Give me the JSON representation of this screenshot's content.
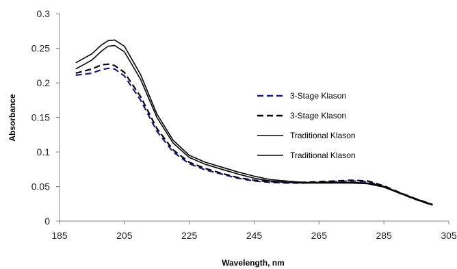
{
  "chart_data": {
    "type": "line",
    "title": "",
    "xlabel": "Wavelength, nm",
    "ylabel": "Absorbance",
    "xlim": [
      185,
      305
    ],
    "ylim": [
      0,
      0.3
    ],
    "xticks": [
      185,
      205,
      225,
      245,
      265,
      285,
      305
    ],
    "yticks": [
      0,
      0.05,
      0.1,
      0.15,
      0.2,
      0.25,
      0.3
    ],
    "ytick_labels": [
      "0",
      "0.05",
      "0.1",
      "0.15",
      "0.2",
      "0.25",
      "0.3"
    ],
    "grid": false,
    "legend_position": "right-center",
    "series": [
      {
        "name": "3-Stage Klason",
        "color": "#1a1a7a",
        "dash": "dashed",
        "x": [
          190,
          195,
          198,
          200,
          202,
          205,
          210,
          215,
          220,
          225,
          230,
          235,
          240,
          245,
          250,
          255,
          260,
          265,
          270,
          275,
          280,
          285,
          290,
          295,
          300
        ],
        "y": [
          0.211,
          0.214,
          0.219,
          0.221,
          0.22,
          0.21,
          0.175,
          0.13,
          0.1,
          0.083,
          0.074,
          0.068,
          0.062,
          0.058,
          0.056,
          0.055,
          0.055,
          0.056,
          0.057,
          0.058,
          0.057,
          0.05,
          0.04,
          0.031,
          0.023
        ]
      },
      {
        "name": "3-Stage Klason",
        "color": "#000000",
        "dash": "dashed",
        "x": [
          190,
          195,
          198,
          200,
          202,
          205,
          210,
          215,
          220,
          225,
          230,
          235,
          240,
          245,
          250,
          255,
          260,
          265,
          270,
          275,
          280,
          285,
          290,
          295,
          300
        ],
        "y": [
          0.214,
          0.22,
          0.226,
          0.227,
          0.225,
          0.215,
          0.18,
          0.134,
          0.103,
          0.085,
          0.076,
          0.069,
          0.063,
          0.059,
          0.057,
          0.056,
          0.056,
          0.057,
          0.058,
          0.059,
          0.058,
          0.051,
          0.041,
          0.032,
          0.024
        ]
      },
      {
        "name": "Traditional Klason",
        "color": "#000000",
        "dash": "solid",
        "x": [
          190,
          195,
          198,
          200,
          202,
          205,
          210,
          215,
          220,
          225,
          230,
          235,
          240,
          245,
          250,
          255,
          260,
          265,
          270,
          275,
          280,
          285,
          290,
          295,
          300
        ],
        "y": [
          0.22,
          0.233,
          0.246,
          0.253,
          0.254,
          0.245,
          0.205,
          0.15,
          0.113,
          0.092,
          0.082,
          0.075,
          0.068,
          0.062,
          0.058,
          0.056,
          0.055,
          0.055,
          0.055,
          0.055,
          0.054,
          0.049,
          0.04,
          0.031,
          0.023
        ]
      },
      {
        "name": "Traditional Klason",
        "color": "#000000",
        "dash": "solid",
        "x": [
          190,
          195,
          198,
          200,
          202,
          205,
          210,
          215,
          220,
          225,
          230,
          235,
          240,
          245,
          250,
          255,
          260,
          265,
          270,
          275,
          280,
          285,
          290,
          295,
          300
        ],
        "y": [
          0.229,
          0.242,
          0.255,
          0.261,
          0.262,
          0.253,
          0.212,
          0.155,
          0.117,
          0.095,
          0.085,
          0.078,
          0.071,
          0.065,
          0.06,
          0.058,
          0.056,
          0.056,
          0.056,
          0.056,
          0.055,
          0.05,
          0.041,
          0.032,
          0.024
        ]
      }
    ]
  }
}
